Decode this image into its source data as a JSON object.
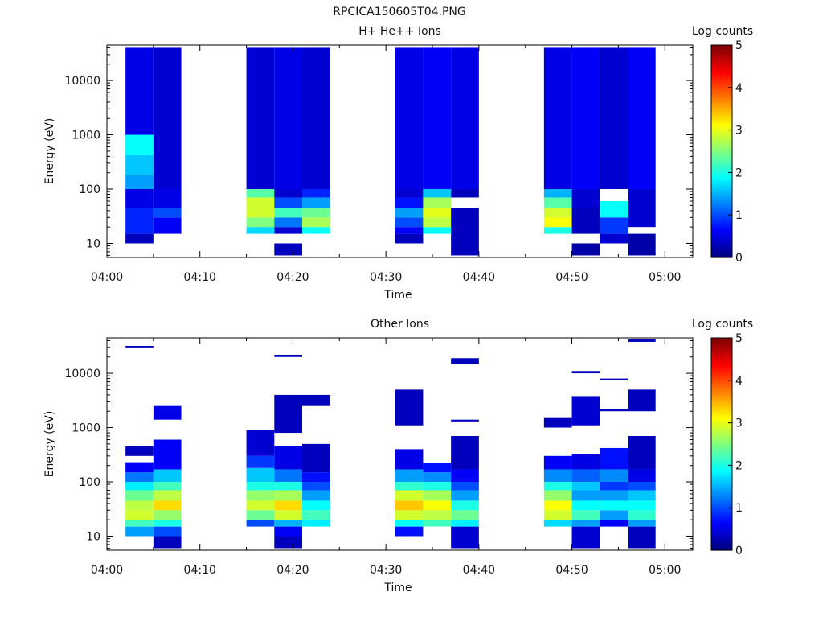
{
  "figure_title": "RPCICA150605T04.PNG",
  "colors": {
    "axis": "#000000",
    "background": "#ffffff"
  },
  "colorbar": {
    "label": "Log counts",
    "ticks": [
      0,
      1,
      2,
      3,
      4,
      5
    ],
    "range": [
      0,
      5
    ],
    "colormap": "jet"
  },
  "chart_data": [
    {
      "type": "heatmap",
      "title": "H+ He++ Ions",
      "xlabel": "Time",
      "ylabel": "Energy (eV)",
      "x_ticks": [
        "04:00",
        "04:10",
        "04:20",
        "04:30",
        "04:40",
        "04:50",
        "05:00"
      ],
      "xlim": [
        "04:00",
        "05:03"
      ],
      "y_scale": "log",
      "ylim": [
        5.5,
        45000
      ],
      "y_ticks": [
        10,
        100,
        1000,
        10000
      ],
      "y_tick_labels": [
        "10",
        "100",
        "1000",
        "10000"
      ],
      "columns": [
        {
          "start": "04:02",
          "end": "04:05",
          "bands": [
            [
              10,
              15,
              0.3
            ],
            [
              15,
              45,
              0.8
            ],
            [
              45,
              100,
              0.5
            ],
            [
              100,
              180,
              1.4
            ],
            [
              180,
              420,
              1.6
            ],
            [
              420,
              1000,
              1.9
            ],
            [
              1000,
              40000,
              0.5
            ]
          ]
        },
        {
          "start": "04:05",
          "end": "04:08",
          "bands": [
            [
              15,
              30,
              0.6
            ],
            [
              30,
              45,
              1.0
            ],
            [
              45,
              100,
              0.5
            ],
            [
              100,
              40000,
              0.4
            ]
          ]
        },
        {
          "start": "04:15",
          "end": "04:18",
          "bands": [
            [
              15,
              20,
              1.7
            ],
            [
              20,
              30,
              2.5
            ],
            [
              30,
              45,
              2.9
            ],
            [
              45,
              70,
              2.9
            ],
            [
              70,
              100,
              2.3
            ],
            [
              100,
              40000,
              0.4
            ]
          ]
        },
        {
          "start": "04:18",
          "end": "04:21",
          "bands": [
            [
              6,
              10,
              0.3
            ],
            [
              15,
              20,
              0.4
            ],
            [
              20,
              30,
              1.2
            ],
            [
              30,
              45,
              2.2
            ],
            [
              45,
              70,
              1.0
            ],
            [
              70,
              100,
              0.4
            ],
            [
              100,
              40000,
              0.5
            ]
          ]
        },
        {
          "start": "04:21",
          "end": "04:24",
          "bands": [
            [
              15,
              20,
              1.9
            ],
            [
              20,
              30,
              2.7
            ],
            [
              30,
              45,
              2.4
            ],
            [
              45,
              70,
              1.4
            ],
            [
              70,
              100,
              0.8
            ],
            [
              100,
              40000,
              0.4
            ]
          ]
        },
        {
          "start": "04:31",
          "end": "04:34",
          "bands": [
            [
              10,
              15,
              0.3
            ],
            [
              15,
              20,
              0.6
            ],
            [
              20,
              30,
              1.0
            ],
            [
              30,
              45,
              1.4
            ],
            [
              45,
              70,
              0.7
            ],
            [
              70,
              100,
              0.4
            ],
            [
              100,
              40000,
              0.5
            ]
          ]
        },
        {
          "start": "04:34",
          "end": "04:37",
          "bands": [
            [
              15,
              20,
              1.9
            ],
            [
              20,
              30,
              2.8
            ],
            [
              30,
              45,
              3.0
            ],
            [
              45,
              70,
              2.7
            ],
            [
              70,
              100,
              1.6
            ],
            [
              100,
              40000,
              0.6
            ]
          ]
        },
        {
          "start": "04:37",
          "end": "04:40",
          "bands": [
            [
              6,
              45,
              0.3
            ],
            [
              70,
              100,
              0.3
            ],
            [
              100,
              40000,
              0.5
            ]
          ]
        },
        {
          "start": "04:47",
          "end": "04:50",
          "bands": [
            [
              15,
              20,
              2.0
            ],
            [
              20,
              30,
              3.1
            ],
            [
              30,
              45,
              2.9
            ],
            [
              45,
              70,
              2.3
            ],
            [
              70,
              100,
              1.5
            ],
            [
              100,
              40000,
              0.5
            ]
          ]
        },
        {
          "start": "04:50",
          "end": "04:53",
          "bands": [
            [
              6,
              10,
              0.2
            ],
            [
              15,
              45,
              0.3
            ],
            [
              45,
              100,
              0.4
            ],
            [
              100,
              40000,
              0.6
            ]
          ]
        },
        {
          "start": "04:53",
          "end": "04:56",
          "bands": [
            [
              10,
              15,
              0.4
            ],
            [
              15,
              30,
              0.9
            ],
            [
              30,
              60,
              1.9
            ],
            [
              100,
              40000,
              0.4
            ]
          ]
        },
        {
          "start": "04:56",
          "end": "04:59",
          "bands": [
            [
              6,
              15,
              0.2
            ],
            [
              20,
              100,
              0.4
            ],
            [
              100,
              40000,
              0.6
            ]
          ]
        }
      ]
    },
    {
      "type": "heatmap",
      "title": "Other Ions",
      "xlabel": "Time",
      "ylabel": "Energy (eV)",
      "x_ticks": [
        "04:00",
        "04:10",
        "04:20",
        "04:30",
        "04:40",
        "04:50",
        "05:00"
      ],
      "xlim": [
        "04:00",
        "05:03"
      ],
      "y_scale": "log",
      "ylim": [
        5.5,
        45000
      ],
      "y_ticks": [
        10,
        100,
        1000,
        10000
      ],
      "y_tick_labels": [
        "10",
        "100",
        "1000",
        "10000"
      ],
      "columns": [
        {
          "start": "04:02",
          "end": "04:05",
          "bands": [
            [
              10,
              15,
              1.4
            ],
            [
              15,
              20,
              2.2
            ],
            [
              20,
              30,
              2.9
            ],
            [
              30,
              45,
              2.8
            ],
            [
              45,
              70,
              2.4
            ],
            [
              70,
              100,
              1.8
            ],
            [
              100,
              150,
              1.2
            ],
            [
              150,
              230,
              0.6
            ],
            [
              300,
              450,
              0.3
            ],
            [
              30000,
              32000,
              0.3
            ]
          ]
        },
        {
          "start": "04:05",
          "end": "04:08",
          "bands": [
            [
              6,
              10,
              0.3
            ],
            [
              10,
              15,
              1.0
            ],
            [
              15,
              20,
              2.0
            ],
            [
              20,
              30,
              2.6
            ],
            [
              30,
              45,
              3.3
            ],
            [
              45,
              70,
              2.8
            ],
            [
              70,
              100,
              2.2
            ],
            [
              100,
              170,
              1.6
            ],
            [
              170,
              600,
              0.6
            ],
            [
              1400,
              2500,
              0.5
            ]
          ]
        },
        {
          "start": "04:15",
          "end": "04:18",
          "bands": [
            [
              15,
              20,
              1.0
            ],
            [
              20,
              30,
              2.4
            ],
            [
              30,
              45,
              2.9
            ],
            [
              45,
              70,
              2.6
            ],
            [
              70,
              100,
              2.0
            ],
            [
              100,
              180,
              1.6
            ],
            [
              180,
              300,
              0.9
            ],
            [
              300,
              900,
              0.4
            ]
          ]
        },
        {
          "start": "04:18",
          "end": "04:21",
          "bands": [
            [
              6,
              10,
              0.3
            ],
            [
              10,
              15,
              0.6
            ],
            [
              15,
              20,
              1.5
            ],
            [
              20,
              30,
              2.9
            ],
            [
              30,
              45,
              3.3
            ],
            [
              45,
              70,
              2.7
            ],
            [
              70,
              100,
              2.0
            ],
            [
              100,
              170,
              1.2
            ],
            [
              170,
              450,
              0.5
            ],
            [
              800,
              4000,
              0.3
            ],
            [
              20000,
              22000,
              0.3
            ]
          ]
        },
        {
          "start": "04:21",
          "end": "04:24",
          "bands": [
            [
              15,
              20,
              1.8
            ],
            [
              20,
              30,
              2.2
            ],
            [
              30,
              45,
              1.9
            ],
            [
              45,
              70,
              1.4
            ],
            [
              70,
              100,
              1.0
            ],
            [
              100,
              150,
              0.7
            ],
            [
              150,
              500,
              0.3
            ],
            [
              2500,
              4000,
              0.3
            ]
          ]
        },
        {
          "start": "04:31",
          "end": "04:34",
          "bands": [
            [
              10,
              15,
              0.7
            ],
            [
              15,
              20,
              1.9
            ],
            [
              20,
              30,
              2.9
            ],
            [
              30,
              45,
              3.4
            ],
            [
              45,
              70,
              2.9
            ],
            [
              70,
              100,
              2.1
            ],
            [
              100,
              170,
              1.4
            ],
            [
              170,
              400,
              0.5
            ],
            [
              1100,
              5000,
              0.3
            ]
          ]
        },
        {
          "start": "04:34",
          "end": "04:37",
          "bands": [
            [
              15,
              20,
              2.2
            ],
            [
              20,
              30,
              2.8
            ],
            [
              30,
              45,
              3.1
            ],
            [
              45,
              70,
              2.7
            ],
            [
              70,
              100,
              2.0
            ],
            [
              100,
              150,
              1.3
            ],
            [
              150,
              220,
              0.7
            ]
          ]
        },
        {
          "start": "04:37",
          "end": "04:40",
          "bands": [
            [
              6,
              15,
              0.4
            ],
            [
              15,
              20,
              1.8
            ],
            [
              20,
              30,
              2.4
            ],
            [
              30,
              45,
              2.0
            ],
            [
              45,
              70,
              1.4
            ],
            [
              70,
              100,
              1.0
            ],
            [
              100,
              170,
              0.6
            ],
            [
              170,
              700,
              0.3
            ],
            [
              1300,
              1400,
              0.3
            ],
            [
              15000,
              19000,
              0.3
            ]
          ]
        },
        {
          "start": "04:47",
          "end": "04:50",
          "bands": [
            [
              15,
              20,
              1.7
            ],
            [
              20,
              30,
              2.9
            ],
            [
              30,
              45,
              3.1
            ],
            [
              45,
              70,
              2.6
            ],
            [
              70,
              100,
              2.0
            ],
            [
              100,
              170,
              1.3
            ],
            [
              170,
              300,
              0.6
            ],
            [
              1000,
              1500,
              0.3
            ]
          ]
        },
        {
          "start": "04:50",
          "end": "04:53",
          "bands": [
            [
              6,
              15,
              0.4
            ],
            [
              15,
              20,
              1.4
            ],
            [
              20,
              30,
              2.2
            ],
            [
              30,
              45,
              1.9
            ],
            [
              45,
              70,
              1.4
            ],
            [
              70,
              100,
              1.6
            ],
            [
              100,
              170,
              1.1
            ],
            [
              170,
              320,
              0.5
            ],
            [
              1100,
              3800,
              0.4
            ],
            [
              10000,
              11000,
              0.3
            ]
          ]
        },
        {
          "start": "04:53",
          "end": "04:56",
          "bands": [
            [
              15,
              20,
              0.6
            ],
            [
              20,
              30,
              1.4
            ],
            [
              30,
              45,
              1.9
            ],
            [
              45,
              70,
              1.4
            ],
            [
              70,
              100,
              0.9
            ],
            [
              100,
              170,
              1.3
            ],
            [
              170,
              420,
              0.7
            ],
            [
              2000,
              2200,
              0.3
            ],
            [
              7500,
              8000,
              0.3
            ]
          ]
        },
        {
          "start": "04:56",
          "end": "04:59",
          "bands": [
            [
              6,
              15,
              0.3
            ],
            [
              15,
              20,
              1.4
            ],
            [
              20,
              30,
              2.1
            ],
            [
              30,
              45,
              1.9
            ],
            [
              45,
              70,
              1.6
            ],
            [
              70,
              100,
              1.0
            ],
            [
              100,
              170,
              0.5
            ],
            [
              170,
              700,
              0.3
            ],
            [
              2000,
              5000,
              0.3
            ],
            [
              38000,
              42000,
              0.3
            ]
          ]
        }
      ]
    }
  ]
}
